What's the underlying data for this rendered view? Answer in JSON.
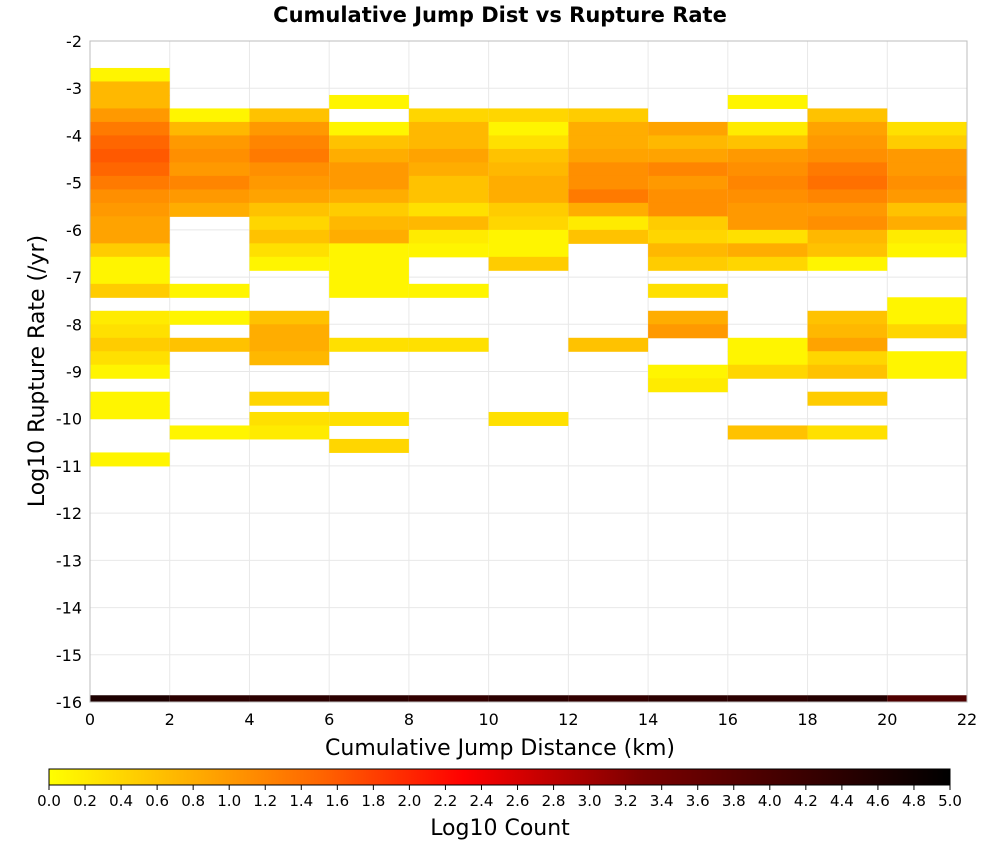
{
  "chart_data": {
    "type": "heatmap",
    "title": "Cumulative Jump Dist vs Rupture Rate",
    "xlabel": "Cumulative Jump Distance (km)",
    "ylabel": "Log10 Rupture Rate (/yr)",
    "xlim": [
      0,
      22
    ],
    "ylim": [
      -16,
      -2
    ],
    "x_ticks": [
      "0",
      "2",
      "4",
      "6",
      "8",
      "10",
      "12",
      "14",
      "16",
      "18",
      "20",
      "22"
    ],
    "y_ticks": [
      "-2",
      "-3",
      "-4",
      "-5",
      "-6",
      "-7",
      "-8",
      "-9",
      "-10",
      "-11",
      "-12",
      "-13",
      "-14",
      "-15",
      "-16"
    ],
    "x_bin_width": 2,
    "y_bin_height": 0.286,
    "grid": true,
    "colorbar": {
      "label": "Log10 Count",
      "min": 0,
      "max": 5,
      "ticks": [
        "0.0",
        "0.2",
        "0.4",
        "0.6",
        "0.8",
        "1.0",
        "1.2",
        "1.4",
        "1.6",
        "1.8",
        "2.0",
        "2.2",
        "2.4",
        "2.6",
        "2.8",
        "3.0",
        "3.2",
        "3.4",
        "3.6",
        "3.8",
        "4.0",
        "4.2",
        "4.4",
        "4.6",
        "4.8",
        "5.0"
      ],
      "colors": [
        "#ffff00",
        "#ff6600",
        "#ff0000",
        "#7a0000",
        "#000000"
      ]
    },
    "cells": [
      [
        0,
        -2.714,
        0.1
      ],
      [
        0,
        -3.0,
        0.7
      ],
      [
        0,
        -3.286,
        0.7
      ],
      [
        0,
        -3.571,
        1.0
      ],
      [
        0,
        -3.857,
        1.3
      ],
      [
        0,
        -4.143,
        1.5
      ],
      [
        0,
        -4.429,
        1.6
      ],
      [
        0,
        -4.714,
        1.5
      ],
      [
        0,
        -5.0,
        1.3
      ],
      [
        0,
        -5.286,
        1.1
      ],
      [
        0,
        -5.571,
        1.0
      ],
      [
        0,
        -5.857,
        0.9
      ],
      [
        0,
        -6.143,
        0.9
      ],
      [
        0,
        -6.429,
        0.5
      ],
      [
        0,
        -6.714,
        0.1
      ],
      [
        0,
        -7.0,
        0.1
      ],
      [
        0,
        -7.286,
        0.5
      ],
      [
        0,
        -7.857,
        0.2
      ],
      [
        0,
        -8.143,
        0.3
      ],
      [
        0,
        -8.429,
        0.5
      ],
      [
        0,
        -8.714,
        0.3
      ],
      [
        0,
        -9.0,
        0.1
      ],
      [
        0,
        -9.571,
        0.1
      ],
      [
        0,
        -9.857,
        0.1
      ],
      [
        0,
        -10.857,
        0.1
      ],
      [
        2,
        -3.571,
        0.1
      ],
      [
        2,
        -3.857,
        0.7
      ],
      [
        2,
        -4.143,
        1.0
      ],
      [
        2,
        -4.429,
        1.1
      ],
      [
        2,
        -4.714,
        1.0
      ],
      [
        2,
        -5.0,
        1.2
      ],
      [
        2,
        -5.286,
        1.0
      ],
      [
        2,
        -5.571,
        0.8
      ],
      [
        2,
        -7.286,
        0.1
      ],
      [
        2,
        -7.857,
        0.1
      ],
      [
        2,
        -8.429,
        0.6
      ],
      [
        2,
        -10.286,
        0.1
      ],
      [
        4,
        -3.571,
        0.6
      ],
      [
        4,
        -3.857,
        1.0
      ],
      [
        4,
        -4.143,
        1.2
      ],
      [
        4,
        -4.429,
        1.3
      ],
      [
        4,
        -4.714,
        1.1
      ],
      [
        4,
        -5.0,
        1.0
      ],
      [
        4,
        -5.286,
        0.9
      ],
      [
        4,
        -5.571,
        0.6
      ],
      [
        4,
        -5.857,
        0.4
      ],
      [
        4,
        -6.143,
        0.6
      ],
      [
        4,
        -6.429,
        0.3
      ],
      [
        4,
        -6.714,
        0.1
      ],
      [
        4,
        -7.857,
        0.6
      ],
      [
        4,
        -8.143,
        0.8
      ],
      [
        4,
        -8.429,
        0.8
      ],
      [
        4,
        -8.714,
        0.7
      ],
      [
        4,
        -9.571,
        0.4
      ],
      [
        4,
        -10.0,
        0.3
      ],
      [
        4,
        -10.286,
        0.2
      ],
      [
        6,
        -3.286,
        0.1
      ],
      [
        6,
        -3.857,
        0.1
      ],
      [
        6,
        -4.143,
        0.6
      ],
      [
        6,
        -4.429,
        0.8
      ],
      [
        6,
        -4.714,
        1.0
      ],
      [
        6,
        -5.0,
        1.0
      ],
      [
        6,
        -5.286,
        0.8
      ],
      [
        6,
        -5.571,
        0.5
      ],
      [
        6,
        -5.857,
        0.7
      ],
      [
        6,
        -6.143,
        0.8
      ],
      [
        6,
        -6.429,
        0.1
      ],
      [
        6,
        -6.714,
        0.1
      ],
      [
        6,
        -7.0,
        0.1
      ],
      [
        6,
        -7.286,
        0.1
      ],
      [
        6,
        -8.429,
        0.3
      ],
      [
        6,
        -10.0,
        0.3
      ],
      [
        6,
        -10.571,
        0.4
      ],
      [
        8,
        -3.571,
        0.4
      ],
      [
        8,
        -3.857,
        0.7
      ],
      [
        8,
        -4.143,
        0.7
      ],
      [
        8,
        -4.429,
        0.9
      ],
      [
        8,
        -4.714,
        0.8
      ],
      [
        8,
        -5.0,
        0.6
      ],
      [
        8,
        -5.286,
        0.6
      ],
      [
        8,
        -5.571,
        0.3
      ],
      [
        8,
        -5.857,
        0.7
      ],
      [
        8,
        -6.143,
        0.2
      ],
      [
        8,
        -6.429,
        0.1
      ],
      [
        8,
        -7.286,
        0.1
      ],
      [
        8,
        -8.429,
        0.3
      ],
      [
        10,
        -3.571,
        0.4
      ],
      [
        10,
        -3.857,
        0.1
      ],
      [
        10,
        -4.143,
        0.3
      ],
      [
        10,
        -4.429,
        0.6
      ],
      [
        10,
        -4.714,
        0.7
      ],
      [
        10,
        -5.0,
        0.8
      ],
      [
        10,
        -5.286,
        0.8
      ],
      [
        10,
        -5.571,
        0.5
      ],
      [
        10,
        -5.857,
        0.4
      ],
      [
        10,
        -6.143,
        0.1
      ],
      [
        10,
        -6.429,
        0.1
      ],
      [
        10,
        -6.714,
        0.5
      ],
      [
        10,
        -10.0,
        0.3
      ],
      [
        12,
        -3.571,
        0.5
      ],
      [
        12,
        -3.857,
        0.8
      ],
      [
        12,
        -4.143,
        0.8
      ],
      [
        12,
        -4.429,
        0.9
      ],
      [
        12,
        -4.714,
        1.1
      ],
      [
        12,
        -5.0,
        1.1
      ],
      [
        12,
        -5.286,
        1.3
      ],
      [
        12,
        -5.571,
        0.8
      ],
      [
        12,
        -5.857,
        0.2
      ],
      [
        12,
        -6.143,
        0.6
      ],
      [
        12,
        -8.429,
        0.6
      ],
      [
        14,
        -3.857,
        0.9
      ],
      [
        14,
        -4.143,
        0.7
      ],
      [
        14,
        -4.429,
        0.9
      ],
      [
        14,
        -4.714,
        1.2
      ],
      [
        14,
        -5.0,
        1.0
      ],
      [
        14,
        -5.286,
        1.1
      ],
      [
        14,
        -5.571,
        1.1
      ],
      [
        14,
        -5.857,
        0.5
      ],
      [
        14,
        -6.143,
        0.4
      ],
      [
        14,
        -6.429,
        0.7
      ],
      [
        14,
        -6.714,
        0.5
      ],
      [
        14,
        -7.286,
        0.3
      ],
      [
        14,
        -7.857,
        0.8
      ],
      [
        14,
        -8.143,
        1.0
      ],
      [
        14,
        -9.0,
        0.1
      ],
      [
        14,
        -9.286,
        0.2
      ],
      [
        16,
        -3.286,
        0.1
      ],
      [
        16,
        -3.857,
        0.2
      ],
      [
        16,
        -4.143,
        0.6
      ],
      [
        16,
        -4.429,
        1.0
      ],
      [
        16,
        -4.714,
        1.1
      ],
      [
        16,
        -5.0,
        1.2
      ],
      [
        16,
        -5.286,
        1.1
      ],
      [
        16,
        -5.571,
        1.0
      ],
      [
        16,
        -5.857,
        1.0
      ],
      [
        16,
        -6.143,
        0.3
      ],
      [
        16,
        -6.429,
        0.8
      ],
      [
        16,
        -6.714,
        0.4
      ],
      [
        16,
        -8.429,
        0.1
      ],
      [
        16,
        -8.714,
        0.1
      ],
      [
        16,
        -9.0,
        0.4
      ],
      [
        16,
        -10.286,
        0.6
      ],
      [
        18,
        -3.571,
        0.6
      ],
      [
        18,
        -3.857,
        0.9
      ],
      [
        18,
        -4.143,
        1.0
      ],
      [
        18,
        -4.429,
        1.1
      ],
      [
        18,
        -4.714,
        1.3
      ],
      [
        18,
        -5.0,
        1.4
      ],
      [
        18,
        -5.286,
        1.2
      ],
      [
        18,
        -5.571,
        1.0
      ],
      [
        18,
        -5.857,
        1.1
      ],
      [
        18,
        -6.143,
        0.7
      ],
      [
        18,
        -6.429,
        0.6
      ],
      [
        18,
        -6.714,
        0.1
      ],
      [
        18,
        -7.857,
        0.6
      ],
      [
        18,
        -8.143,
        0.7
      ],
      [
        18,
        -8.429,
        0.9
      ],
      [
        18,
        -8.714,
        0.4
      ],
      [
        18,
        -9.0,
        0.6
      ],
      [
        18,
        -9.571,
        0.5
      ],
      [
        18,
        -10.286,
        0.3
      ],
      [
        20,
        -3.857,
        0.3
      ],
      [
        20,
        -4.143,
        0.5
      ],
      [
        20,
        -4.429,
        1.0
      ],
      [
        20,
        -4.714,
        1.0
      ],
      [
        20,
        -5.0,
        1.1
      ],
      [
        20,
        -5.286,
        1.0
      ],
      [
        20,
        -5.571,
        0.6
      ],
      [
        20,
        -5.857,
        0.8
      ],
      [
        20,
        -6.143,
        0.2
      ],
      [
        20,
        -6.429,
        0.1
      ],
      [
        20,
        -7.571,
        0.1
      ],
      [
        20,
        -7.857,
        0.1
      ],
      [
        20,
        -8.143,
        0.4
      ],
      [
        20,
        -8.714,
        0.1
      ],
      [
        20,
        -9.0,
        0.1
      ]
    ],
    "floor_row": {
      "y": -16,
      "values": [
        4.6,
        4.4,
        4.4,
        4.4,
        4.3,
        4.4,
        4.3,
        4.4,
        4.4,
        4.5,
        3.9
      ]
    }
  }
}
